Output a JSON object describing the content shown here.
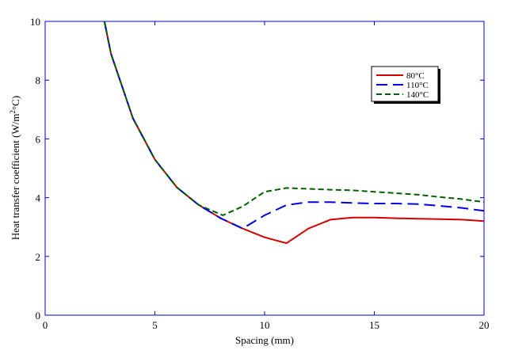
{
  "chart_data": {
    "type": "line",
    "title": "",
    "xlabel": "Spacing (mm)",
    "ylabel_main": "Heat transfer coefficient (W/m",
    "ylabel_sup": "2",
    "ylabel_tail": "°C)",
    "xlim": [
      0,
      20
    ],
    "ylim": [
      0,
      10
    ],
    "x_ticks": [
      0,
      5,
      10,
      15,
      20
    ],
    "y_ticks": [
      0,
      2,
      4,
      6,
      8,
      10
    ],
    "grid": false,
    "legend_position": "top-right",
    "series": [
      {
        "name": "80°C",
        "color": "#d40000",
        "dash": "solid",
        "points": [
          [
            2.7,
            10
          ],
          [
            3,
            8.9
          ],
          [
            4,
            6.7
          ],
          [
            5,
            5.3
          ],
          [
            6,
            4.35
          ],
          [
            7,
            3.75
          ],
          [
            8,
            3.3
          ],
          [
            9,
            2.95
          ],
          [
            10,
            2.65
          ],
          [
            11,
            2.45
          ],
          [
            12,
            2.95
          ],
          [
            13,
            3.25
          ],
          [
            14,
            3.32
          ],
          [
            15,
            3.32
          ],
          [
            16,
            3.3
          ],
          [
            17,
            3.28
          ],
          [
            18,
            3.27
          ],
          [
            19,
            3.25
          ],
          [
            20,
            3.2
          ]
        ]
      },
      {
        "name": "110°C",
        "color": "#0000e0",
        "dash": "long",
        "points": [
          [
            2.7,
            10
          ],
          [
            3,
            8.9
          ],
          [
            4,
            6.7
          ],
          [
            5,
            5.3
          ],
          [
            6,
            4.35
          ],
          [
            7,
            3.75
          ],
          [
            8,
            3.3
          ],
          [
            9,
            2.95
          ],
          [
            10,
            3.4
          ],
          [
            11,
            3.75
          ],
          [
            12,
            3.85
          ],
          [
            13,
            3.85
          ],
          [
            14,
            3.82
          ],
          [
            15,
            3.8
          ],
          [
            16,
            3.8
          ],
          [
            17,
            3.78
          ],
          [
            18,
            3.72
          ],
          [
            19,
            3.65
          ],
          [
            20,
            3.55
          ]
        ]
      },
      {
        "name": "140°C",
        "color": "#006000",
        "dash": "short",
        "points": [
          [
            2.7,
            10
          ],
          [
            3,
            8.9
          ],
          [
            4,
            6.7
          ],
          [
            5,
            5.3
          ],
          [
            6,
            4.35
          ],
          [
            7,
            3.75
          ],
          [
            8.1,
            3.4
          ],
          [
            9,
            3.7
          ],
          [
            10,
            4.2
          ],
          [
            11,
            4.33
          ],
          [
            12,
            4.3
          ],
          [
            13,
            4.27
          ],
          [
            14,
            4.25
          ],
          [
            15,
            4.2
          ],
          [
            16,
            4.15
          ],
          [
            17,
            4.1
          ],
          [
            18,
            4.02
          ],
          [
            19,
            3.95
          ],
          [
            20,
            3.85
          ]
        ]
      }
    ]
  }
}
